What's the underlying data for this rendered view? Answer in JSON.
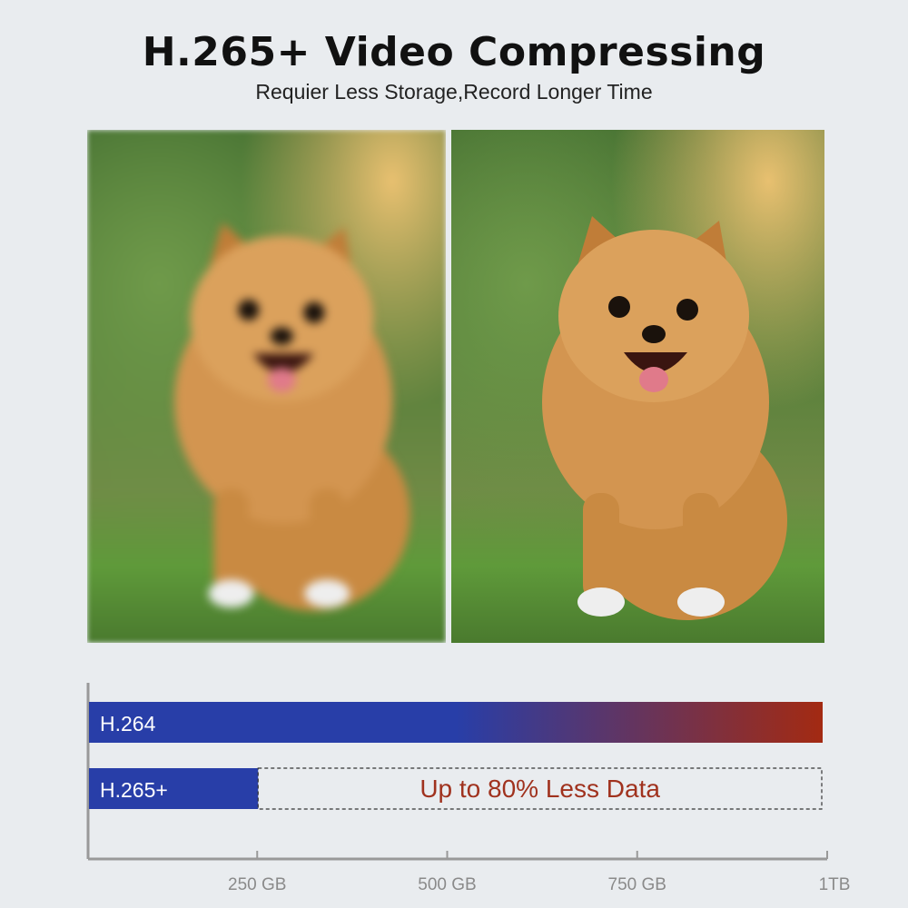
{
  "header": {
    "title": "H.265+ Video Compressing",
    "subtitle": "Requier Less Storage,Record Longer Time"
  },
  "photos": [
    {
      "name": "blurry-dog-photo",
      "quality": "blurred"
    },
    {
      "name": "sharp-dog-photo",
      "quality": "sharp"
    }
  ],
  "chart_data": {
    "type": "bar",
    "orientation": "horizontal",
    "categories": [
      "H.264",
      "H.265+"
    ],
    "values": [
      1000,
      250
    ],
    "unit": "GB",
    "xlim": [
      0,
      1000
    ],
    "x_ticks": [
      {
        "value": 250,
        "label": "250 GB"
      },
      {
        "value": 500,
        "label": "500 GB"
      },
      {
        "value": 750,
        "label": "750 GB"
      },
      {
        "value": 1000,
        "label": "1TB"
      }
    ],
    "annotation": "Up to 80% Less Data",
    "colors": {
      "bar_start": "#283ea8",
      "bar_end": "#a32a12",
      "annotation": "#a0321e",
      "axis": "#999999",
      "tick_label": "#8a8a8a"
    },
    "grid": false,
    "legend": "none"
  }
}
